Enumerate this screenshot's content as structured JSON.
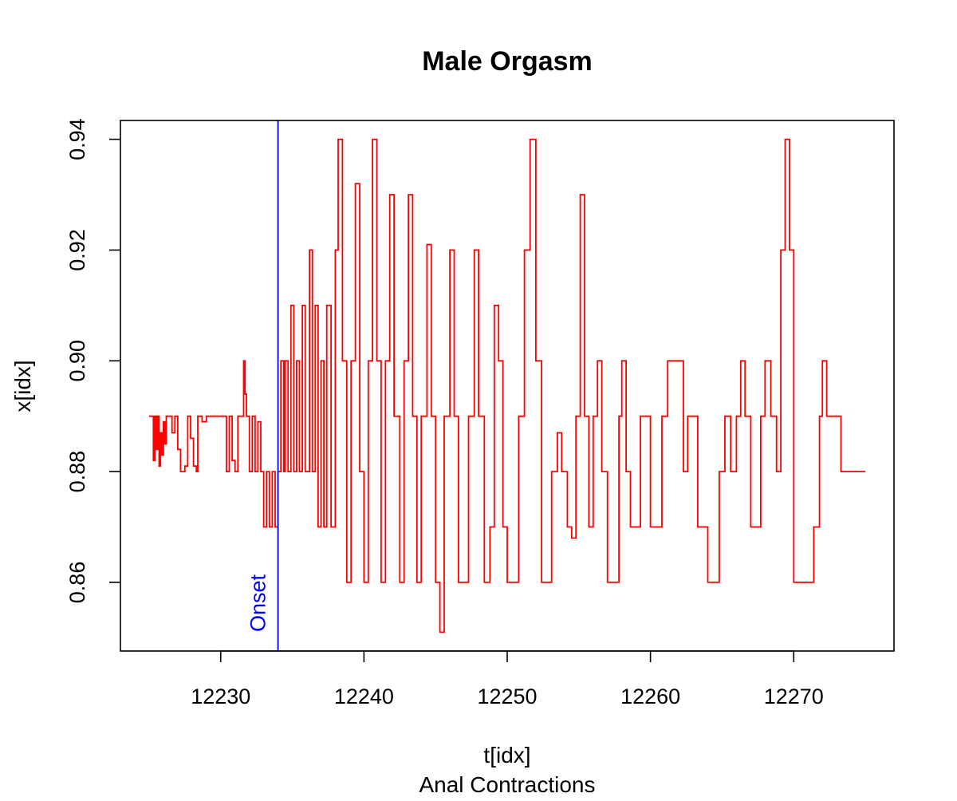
{
  "chart_data": {
    "type": "line",
    "title": "Male Orgasm",
    "xlabel": "t[idx]",
    "subtitle": "Anal Contractions",
    "ylabel": "x[idx]",
    "xlim": [
      12223,
      12277
    ],
    "ylim": [
      0.8476,
      0.9434
    ],
    "x_ticks": [
      "12230",
      "12240",
      "12250",
      "12260",
      "12270"
    ],
    "x_tick_values": [
      12230,
      12240,
      12250,
      12260,
      12270
    ],
    "y_ticks": [
      "0.86",
      "0.88",
      "0.90",
      "0.92",
      "0.94"
    ],
    "y_tick_values": [
      0.86,
      0.88,
      0.9,
      0.92,
      0.94
    ],
    "grid": false,
    "series": [
      {
        "color": "#ff0000",
        "step": true,
        "points": [
          [
            12225.0,
            0.89
          ],
          [
            12225.2,
            0.89
          ],
          [
            12225.3,
            0.882
          ],
          [
            12225.4,
            0.89
          ],
          [
            12225.5,
            0.884
          ],
          [
            12225.6,
            0.89
          ],
          [
            12225.7,
            0.881
          ],
          [
            12225.8,
            0.887
          ],
          [
            12225.9,
            0.883
          ],
          [
            12226.0,
            0.889
          ],
          [
            12226.1,
            0.885
          ],
          [
            12226.2,
            0.89
          ],
          [
            12226.5,
            0.89
          ],
          [
            12226.6,
            0.887
          ],
          [
            12226.8,
            0.89
          ],
          [
            12227.0,
            0.884
          ],
          [
            12227.2,
            0.88
          ],
          [
            12227.5,
            0.881
          ],
          [
            12227.7,
            0.89
          ],
          [
            12227.9,
            0.886
          ],
          [
            12228.1,
            0.881
          ],
          [
            12228.3,
            0.88
          ],
          [
            12228.4,
            0.89
          ],
          [
            12228.7,
            0.889
          ],
          [
            12229.0,
            0.89
          ],
          [
            12230.3,
            0.89
          ],
          [
            12230.4,
            0.88
          ],
          [
            12230.6,
            0.89
          ],
          [
            12230.8,
            0.882
          ],
          [
            12231.0,
            0.88
          ],
          [
            12231.2,
            0.89
          ],
          [
            12231.5,
            0.89
          ],
          [
            12231.6,
            0.9
          ],
          [
            12231.7,
            0.894
          ],
          [
            12231.8,
            0.89
          ],
          [
            12232.0,
            0.88
          ],
          [
            12232.2,
            0.89
          ],
          [
            12232.4,
            0.88
          ],
          [
            12232.6,
            0.889
          ],
          [
            12232.8,
            0.88
          ],
          [
            12233.0,
            0.87
          ],
          [
            12233.2,
            0.88
          ],
          [
            12233.4,
            0.87
          ],
          [
            12233.6,
            0.88
          ],
          [
            12233.8,
            0.87
          ],
          [
            12234.0,
            0.88
          ],
          [
            12234.2,
            0.9
          ],
          [
            12234.4,
            0.88
          ],
          [
            12234.5,
            0.9
          ],
          [
            12234.7,
            0.88
          ],
          [
            12234.9,
            0.91
          ],
          [
            12235.1,
            0.88
          ],
          [
            12235.3,
            0.9
          ],
          [
            12235.5,
            0.88
          ],
          [
            12235.7,
            0.91
          ],
          [
            12235.9,
            0.88
          ],
          [
            12236.2,
            0.92
          ],
          [
            12236.4,
            0.88
          ],
          [
            12236.6,
            0.91
          ],
          [
            12236.8,
            0.87
          ],
          [
            12237.0,
            0.9
          ],
          [
            12237.2,
            0.87
          ],
          [
            12237.4,
            0.91
          ],
          [
            12237.7,
            0.87
          ],
          [
            12238.0,
            0.92
          ],
          [
            12238.2,
            0.94
          ],
          [
            12238.5,
            0.9
          ],
          [
            12238.8,
            0.86
          ],
          [
            12239.1,
            0.9
          ],
          [
            12239.4,
            0.932
          ],
          [
            12239.7,
            0.88
          ],
          [
            12240.0,
            0.86
          ],
          [
            12240.3,
            0.9
          ],
          [
            12240.6,
            0.94
          ],
          [
            12240.9,
            0.9
          ],
          [
            12241.2,
            0.86
          ],
          [
            12241.5,
            0.9
          ],
          [
            12241.8,
            0.93
          ],
          [
            12242.1,
            0.89
          ],
          [
            12242.5,
            0.86
          ],
          [
            12242.8,
            0.9
          ],
          [
            12243.1,
            0.93
          ],
          [
            12243.4,
            0.89
          ],
          [
            12243.7,
            0.86
          ],
          [
            12244.0,
            0.89
          ],
          [
            12244.4,
            0.921
          ],
          [
            12244.7,
            0.89
          ],
          [
            12245.0,
            0.86
          ],
          [
            12245.3,
            0.851
          ],
          [
            12245.6,
            0.89
          ],
          [
            12246.0,
            0.92
          ],
          [
            12246.3,
            0.89
          ],
          [
            12246.6,
            0.86
          ],
          [
            12247.0,
            0.86
          ],
          [
            12247.3,
            0.89
          ],
          [
            12247.7,
            0.92
          ],
          [
            12248.0,
            0.89
          ],
          [
            12248.4,
            0.86
          ],
          [
            12248.8,
            0.87
          ],
          [
            12249.1,
            0.91
          ],
          [
            12249.4,
            0.9
          ],
          [
            12249.7,
            0.87
          ],
          [
            12250.0,
            0.86
          ],
          [
            12250.5,
            0.86
          ],
          [
            12250.8,
            0.89
          ],
          [
            12251.2,
            0.92
          ],
          [
            12251.6,
            0.94
          ],
          [
            12252.0,
            0.9
          ],
          [
            12252.4,
            0.86
          ],
          [
            12252.8,
            0.86
          ],
          [
            12253.1,
            0.88
          ],
          [
            12253.5,
            0.887
          ],
          [
            12253.8,
            0.88
          ],
          [
            12254.2,
            0.87
          ],
          [
            12254.5,
            0.868
          ],
          [
            12254.8,
            0.89
          ],
          [
            12255.1,
            0.93
          ],
          [
            12255.4,
            0.89
          ],
          [
            12255.7,
            0.87
          ],
          [
            12256.0,
            0.89
          ],
          [
            12256.3,
            0.9
          ],
          [
            12256.6,
            0.88
          ],
          [
            12257.0,
            0.86
          ],
          [
            12257.4,
            0.86
          ],
          [
            12257.8,
            0.89
          ],
          [
            12258.0,
            0.9
          ],
          [
            12258.3,
            0.88
          ],
          [
            12258.6,
            0.87
          ],
          [
            12259.0,
            0.87
          ],
          [
            12259.3,
            0.89
          ],
          [
            12259.7,
            0.89
          ],
          [
            12260.0,
            0.87
          ],
          [
            12260.5,
            0.87
          ],
          [
            12260.8,
            0.89
          ],
          [
            12261.2,
            0.9
          ],
          [
            12262.0,
            0.9
          ],
          [
            12262.3,
            0.88
          ],
          [
            12262.6,
            0.89
          ],
          [
            12263.0,
            0.89
          ],
          [
            12263.3,
            0.87
          ],
          [
            12263.7,
            0.87
          ],
          [
            12264.0,
            0.86
          ],
          [
            12264.4,
            0.86
          ],
          [
            12264.8,
            0.88
          ],
          [
            12265.2,
            0.89
          ],
          [
            12265.6,
            0.88
          ],
          [
            12266.0,
            0.89
          ],
          [
            12266.3,
            0.9
          ],
          [
            12266.6,
            0.89
          ],
          [
            12267.0,
            0.87
          ],
          [
            12267.4,
            0.87
          ],
          [
            12267.7,
            0.89
          ],
          [
            12268.0,
            0.9
          ],
          [
            12268.4,
            0.89
          ],
          [
            12268.8,
            0.88
          ],
          [
            12269.1,
            0.92
          ],
          [
            12269.4,
            0.94
          ],
          [
            12269.7,
            0.92
          ],
          [
            12270.0,
            0.86
          ],
          [
            12270.4,
            0.86
          ],
          [
            12271.0,
            0.86
          ],
          [
            12271.4,
            0.87
          ],
          [
            12271.8,
            0.89
          ],
          [
            12272.0,
            0.9
          ],
          [
            12272.3,
            0.89
          ],
          [
            12273.0,
            0.89
          ],
          [
            12273.3,
            0.88
          ],
          [
            12273.7,
            0.88
          ],
          [
            12274.2,
            0.88
          ],
          [
            12275.0,
            0.88
          ]
        ]
      }
    ],
    "annotations": [
      {
        "type": "vline",
        "x": 12234.0,
        "color": "#0000ff",
        "label": "Onset"
      }
    ]
  }
}
